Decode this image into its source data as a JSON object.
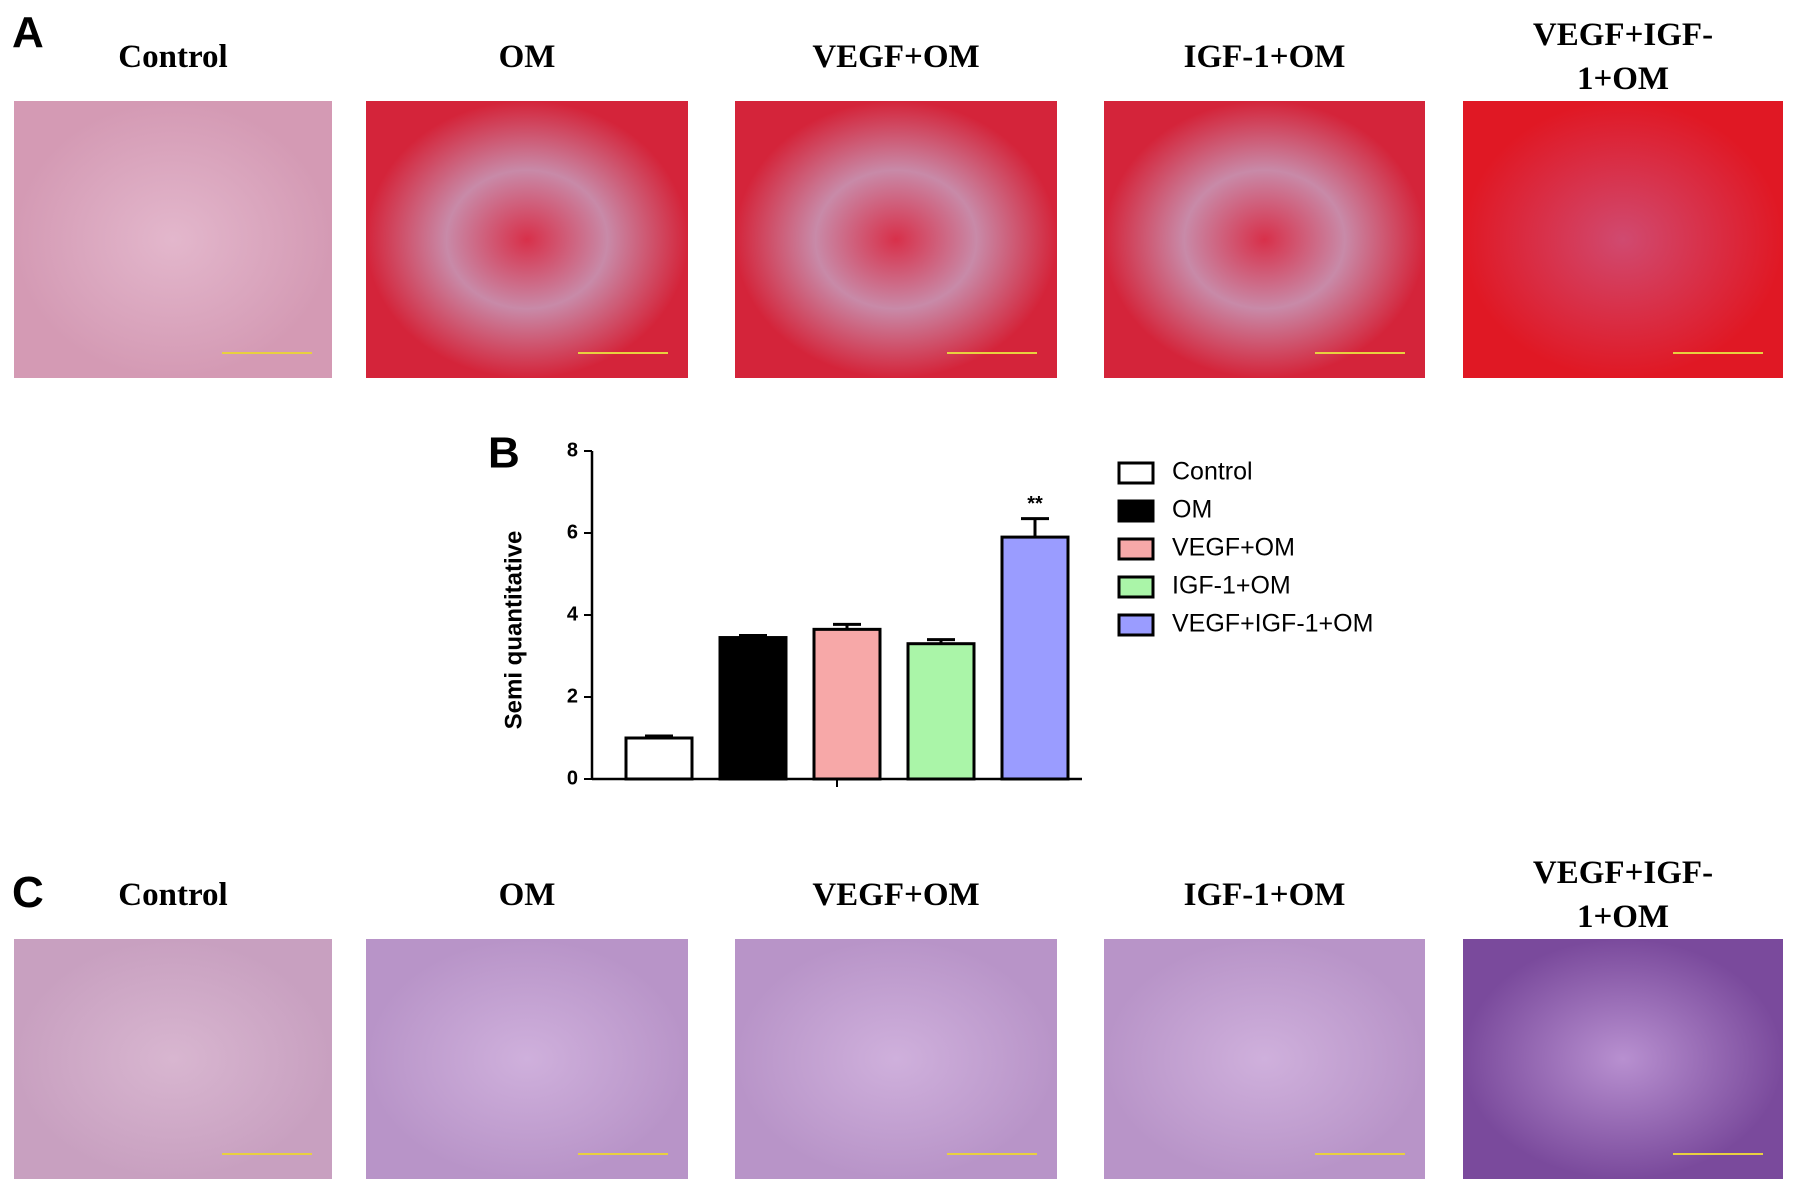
{
  "panel_a": {
    "letter": "A",
    "labels": [
      "Control",
      "OM",
      "VEGF+OM",
      "IGF-1+OM",
      "VEGF+IGF-1+OM"
    ]
  },
  "chart_data": {
    "type": "bar",
    "panel_letter": "B",
    "ylabel": "Semi quantitative",
    "categories": [
      "Control",
      "OM",
      "VEGF+OM",
      "IGF-1+OM",
      "VEGF+IGF-1+OM"
    ],
    "values": [
      1.0,
      3.45,
      3.65,
      3.3,
      5.9
    ],
    "errors": [
      0.05,
      0.05,
      0.12,
      0.1,
      0.45
    ],
    "significance": [
      null,
      null,
      null,
      null,
      "**"
    ],
    "colors": [
      "#ffffff",
      "#000000",
      "#f7a8a8",
      "#aaf5a8",
      "#9a9cff"
    ],
    "ylim": [
      0,
      8
    ],
    "yticks": [
      0,
      2,
      4,
      6,
      8
    ]
  },
  "panel_c": {
    "letter": "C",
    "labels": [
      "Control",
      "OM",
      "VEGF+OM",
      "IGF-1+OM",
      "VEGF+IGF-1+OM"
    ]
  }
}
